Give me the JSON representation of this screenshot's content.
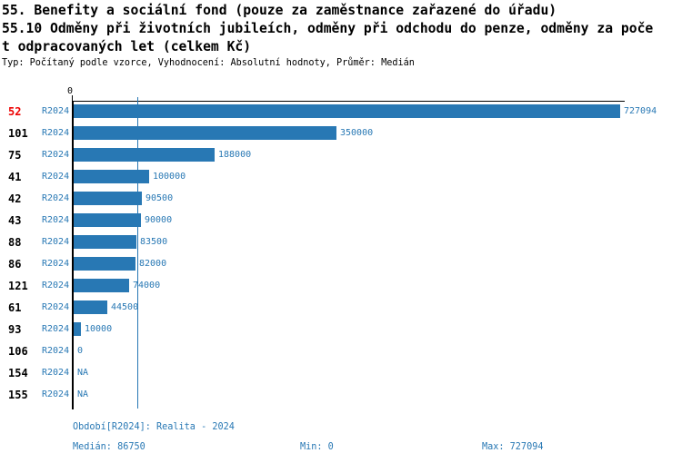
{
  "title": {
    "line1": "55. Benefity a sociální fond (pouze za zaměstnance zařazené do úřadu)",
    "line2": "55.10 Odměny při životních jubileích, odměny při odchodu do penze, odměny za poče",
    "line3": "t odpracovaných let (celkem Kč)",
    "meta": "Typ: Počítaný podle vzorce, Vyhodnocení: Absolutní hodnoty, Průměr: Medián"
  },
  "chart_data": {
    "type": "bar",
    "orientation": "horizontal",
    "title": "55.10 Odměny při životních jubileích, odměny při odchodu do penze, odměny za počet odpracovaných let (celkem Kč)",
    "categories": [
      "52",
      "101",
      "75",
      "41",
      "42",
      "43",
      "88",
      "86",
      "121",
      "61",
      "93",
      "106",
      "154",
      "155"
    ],
    "series_label": "R2024",
    "values": [
      727094,
      350000,
      188000,
      100000,
      90500,
      90000,
      83500,
      82000,
      74000,
      44500,
      10000,
      0,
      null,
      null
    ],
    "value_labels": [
      "727094",
      "350000",
      "188000",
      "100000",
      "90500",
      "90000",
      "83500",
      "82000",
      "74000",
      "44500",
      "10000",
      "0",
      "NA",
      "NA"
    ],
    "highlighted_category": "52",
    "axis_zero_label": "0",
    "xlim": [
      0,
      727094
    ],
    "median_value": 86750,
    "grid": false,
    "legend": false,
    "colors": {
      "bar": "#2878b4",
      "median_line": "#2878b4",
      "highlight_text": "#ee0000",
      "axis": "#000000",
      "label_text": "#2878b4"
    }
  },
  "footer": {
    "period": "Období[R2024]: Realita - 2024",
    "median": "Medián: 86750",
    "min": "Min: 0",
    "max": "Max: 727094"
  }
}
